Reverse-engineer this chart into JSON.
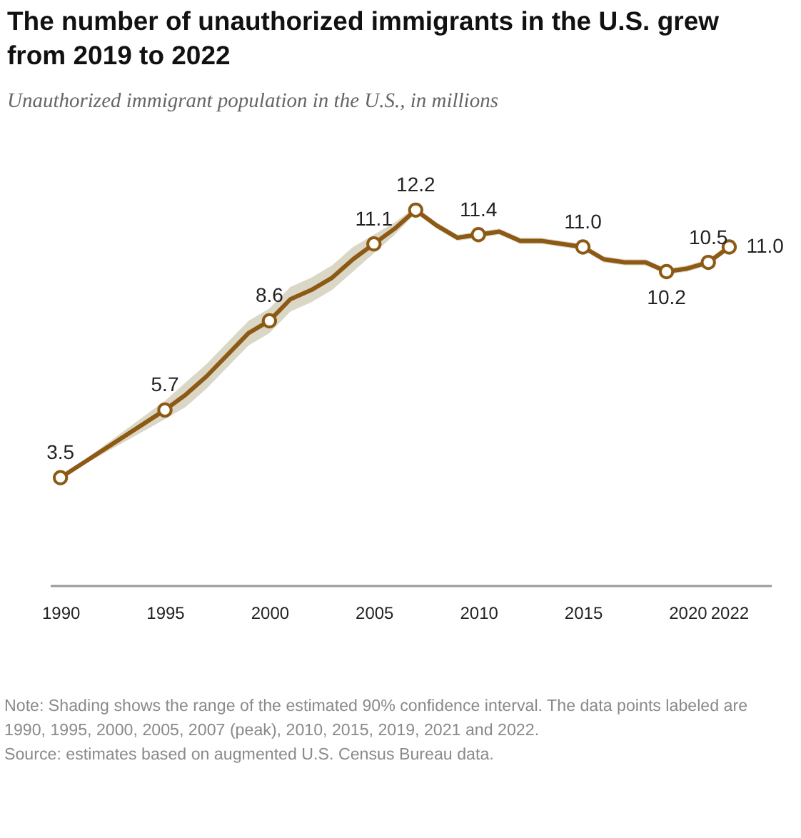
{
  "chart_data": {
    "type": "line",
    "title": "The number of unauthorized immigrants in the U.S. grew from 2019 to 2022",
    "subtitle": "Unauthorized immigrant population in the U.S., in millions",
    "x": [
      1990,
      1995,
      1996,
      1997,
      1998,
      1999,
      2000,
      2001,
      2002,
      2003,
      2004,
      2005,
      2006,
      2007,
      2008,
      2009,
      2010,
      2011,
      2012,
      2013,
      2014,
      2015,
      2016,
      2017,
      2018,
      2019,
      2020,
      2021,
      2022
    ],
    "series": [
      {
        "color": "#8c5a14",
        "values": [
          3.5,
          5.7,
          6.2,
          6.8,
          7.5,
          8.2,
          8.6,
          9.3,
          9.6,
          10.0,
          10.6,
          11.1,
          11.6,
          12.2,
          11.7,
          11.3,
          11.4,
          11.5,
          11.2,
          11.2,
          11.1,
          11.0,
          10.6,
          10.5,
          10.5,
          10.2,
          10.3,
          10.5,
          11.0
        ],
        "lower": [
          3.5,
          5.4,
          5.8,
          6.4,
          7.1,
          7.8,
          8.2,
          8.9,
          9.2,
          9.6,
          10.2,
          10.8,
          11.4,
          12.1,
          11.6,
          11.2,
          11.3,
          11.4,
          11.1,
          11.1,
          11.0,
          10.9,
          10.5,
          10.4,
          10.4,
          10.1,
          10.2,
          10.4,
          10.9
        ],
        "upper": [
          3.5,
          6.0,
          6.6,
          7.2,
          7.9,
          8.6,
          9.0,
          9.7,
          10.0,
          10.4,
          11.0,
          11.4,
          11.8,
          12.3,
          11.8,
          11.4,
          11.5,
          11.6,
          11.3,
          11.3,
          11.2,
          11.1,
          10.7,
          10.6,
          10.6,
          10.3,
          10.4,
          10.6,
          11.1
        ],
        "value_labels": [
          "3.5",
          "5.7",
          null,
          null,
          null,
          null,
          "8.6",
          null,
          null,
          null,
          null,
          "11.1",
          null,
          "12.2",
          null,
          null,
          "11.4",
          null,
          null,
          null,
          null,
          "11.0",
          null,
          null,
          null,
          "10.2",
          null,
          "10.5",
          "11.0"
        ]
      }
    ],
    "xlim": [
      1989.5,
      2024
    ],
    "xticks": [
      1990,
      1995,
      2000,
      2005,
      2010,
      2015,
      2020,
      2022
    ],
    "grid": false,
    "annotations": [
      "Note: Shading shows the range of the estimated 90% confidence interval. The data points labeled are 1990, 1995, 2000, 2005, 2007 (peak), 2010, 2015, 2019, 2021 and 2022.",
      "Source: estimates based on augmented U.S. Census Bureau data."
    ]
  }
}
